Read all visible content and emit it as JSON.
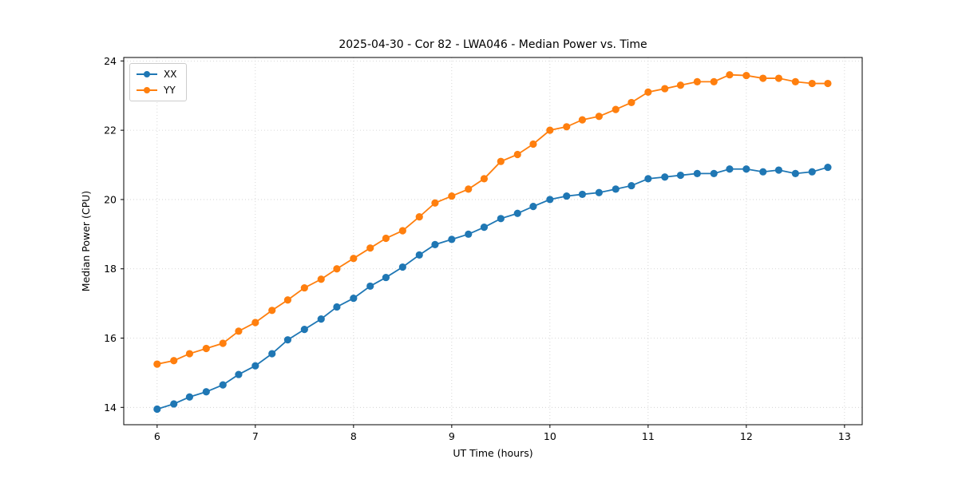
{
  "figure": {
    "title": "2025-04-30 - Cor 82 - LWA046 - Median Power vs. Time",
    "xlabel": "UT Time (hours)",
    "ylabel": "Median Power (CPU)"
  },
  "legend": {
    "items": [
      {
        "label": "XX",
        "color": "#1f77b4"
      },
      {
        "label": "YY",
        "color": "#ff7f0e"
      }
    ]
  },
  "chart_data": {
    "type": "line",
    "title": "2025-04-30 - Cor 82 - LWA046 - Median Power vs. Time",
    "xlabel": "UT Time (hours)",
    "ylabel": "Median Power (CPU)",
    "xlim": [
      5.66,
      13.18
    ],
    "ylim": [
      13.5,
      24.1
    ],
    "xticks": [
      6,
      7,
      8,
      9,
      10,
      11,
      12,
      13
    ],
    "yticks": [
      14,
      16,
      18,
      20,
      22,
      24
    ],
    "grid": true,
    "legend_position": "upper left",
    "marker": "o",
    "x": [
      6.0,
      6.17,
      6.33,
      6.5,
      6.67,
      6.83,
      7.0,
      7.17,
      7.33,
      7.5,
      7.67,
      7.83,
      8.0,
      8.17,
      8.33,
      8.5,
      8.67,
      8.83,
      9.0,
      9.17,
      9.33,
      9.5,
      9.67,
      9.83,
      10.0,
      10.17,
      10.33,
      10.5,
      10.67,
      10.83,
      11.0,
      11.17,
      11.33,
      11.5,
      11.67,
      11.83,
      12.0,
      12.17,
      12.33,
      12.5,
      12.67,
      12.83
    ],
    "series": [
      {
        "name": "XX",
        "color": "#1f77b4",
        "values": [
          13.95,
          14.1,
          14.3,
          14.45,
          14.65,
          14.95,
          15.2,
          15.55,
          15.95,
          16.25,
          16.55,
          16.9,
          17.15,
          17.5,
          17.75,
          18.05,
          18.4,
          18.7,
          18.85,
          19.0,
          19.2,
          19.45,
          19.6,
          19.8,
          20.0,
          20.1,
          20.15,
          20.2,
          20.3,
          20.4,
          20.6,
          20.65,
          20.7,
          20.75,
          20.75,
          20.88,
          20.88,
          20.8,
          20.85,
          20.75,
          20.8,
          20.93
        ]
      },
      {
        "name": "YY",
        "color": "#ff7f0e",
        "values": [
          15.25,
          15.35,
          15.55,
          15.7,
          15.85,
          16.2,
          16.45,
          16.8,
          17.1,
          17.45,
          17.7,
          18.0,
          18.3,
          18.6,
          18.88,
          19.1,
          19.5,
          19.9,
          20.1,
          20.3,
          20.6,
          21.1,
          21.3,
          21.6,
          22.0,
          22.1,
          22.3,
          22.4,
          22.6,
          22.8,
          23.1,
          23.2,
          23.3,
          23.4,
          23.4,
          23.6,
          23.58,
          23.5,
          23.5,
          23.4,
          23.35,
          23.35
        ]
      }
    ]
  }
}
